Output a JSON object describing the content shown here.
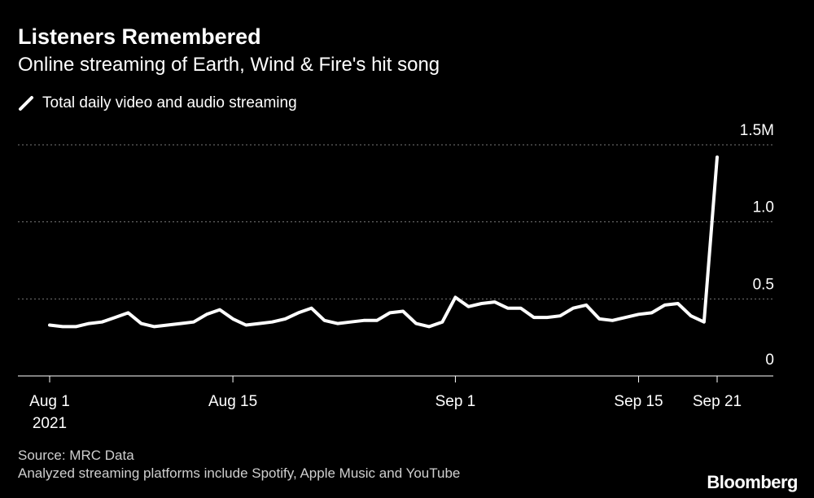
{
  "header": {
    "title": "Listeners Remembered",
    "subtitle": "Online streaming of Earth, Wind & Fire's hit song"
  },
  "legend": {
    "label": "Total daily video and audio streaming"
  },
  "footer": {
    "source": "Source: MRC Data",
    "note": "Analyzed streaming platforms include Spotify, Apple Music and YouTube"
  },
  "brand": "Bloomberg",
  "colors": {
    "background": "#000000",
    "line": "#ffffff",
    "grid": "#777777"
  },
  "chart_data": {
    "type": "line",
    "title": "Listeners Remembered",
    "subtitle": "Online streaming of Earth, Wind & Fire's hit song",
    "xlabel": "",
    "ylabel": "",
    "x_start_date": "2021-08-01",
    "xlim": [
      0,
      52
    ],
    "ylim": [
      0,
      1.5
    ],
    "y_ticks": [
      {
        "value": 0,
        "label": "0"
      },
      {
        "value": 0.5,
        "label": "0.5"
      },
      {
        "value": 1.0,
        "label": "1.0"
      },
      {
        "value": 1.5,
        "label": "1.5M"
      }
    ],
    "x_ticks": [
      {
        "day": 0,
        "label": "Aug 1",
        "sublabel": "2021"
      },
      {
        "day": 14,
        "label": "Aug 15"
      },
      {
        "day": 31,
        "label": "Sep 1"
      },
      {
        "day": 45,
        "label": "Sep 15"
      },
      {
        "day": 51,
        "label": "Sep 21"
      }
    ],
    "grid": true,
    "legend_position": "top-left",
    "series": [
      {
        "name": "Total daily video and audio streaming",
        "color": "#ffffff",
        "values": [
          0.33,
          0.32,
          0.32,
          0.34,
          0.35,
          0.38,
          0.41,
          0.34,
          0.32,
          0.33,
          0.34,
          0.35,
          0.4,
          0.43,
          0.37,
          0.33,
          0.34,
          0.35,
          0.37,
          0.41,
          0.44,
          0.36,
          0.34,
          0.35,
          0.36,
          0.36,
          0.41,
          0.42,
          0.34,
          0.32,
          0.35,
          0.51,
          0.45,
          0.47,
          0.48,
          0.44,
          0.44,
          0.38,
          0.38,
          0.39,
          0.44,
          0.46,
          0.37,
          0.36,
          0.38,
          0.4,
          0.41,
          0.46,
          0.47,
          0.39,
          0.35,
          1.42
        ]
      }
    ]
  }
}
